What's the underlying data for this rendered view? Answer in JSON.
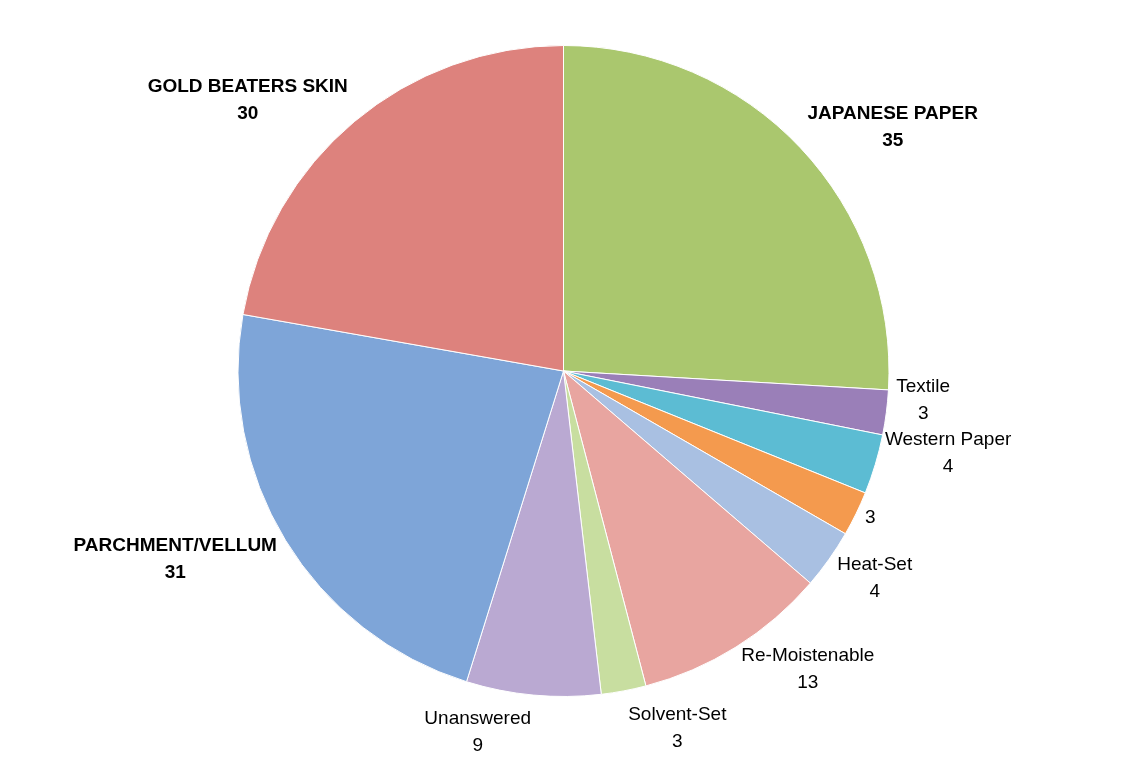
{
  "chart_data": {
    "type": "pie",
    "categories": [
      "JAPANESE PAPER",
      "Textile",
      "Western Paper",
      null,
      "Heat-Set",
      "Re-Moistenable",
      "Solvent-Set",
      "Unanswered",
      "PARCHMENT/VELLUM",
      "GOLD BEATERS SKIN"
    ],
    "values": [
      35,
      3,
      4,
      3,
      4,
      13,
      3,
      9,
      31,
      30
    ],
    "colors": [
      "#aac76e",
      "#9a7fb8",
      "#5cbcd3",
      "#f49a4e",
      "#a9c0e2",
      "#e8a5a0",
      "#c8dea0",
      "#baa9d2",
      "#7ea5d8",
      "#dd827d"
    ],
    "data_labels": true,
    "legend": false
  }
}
